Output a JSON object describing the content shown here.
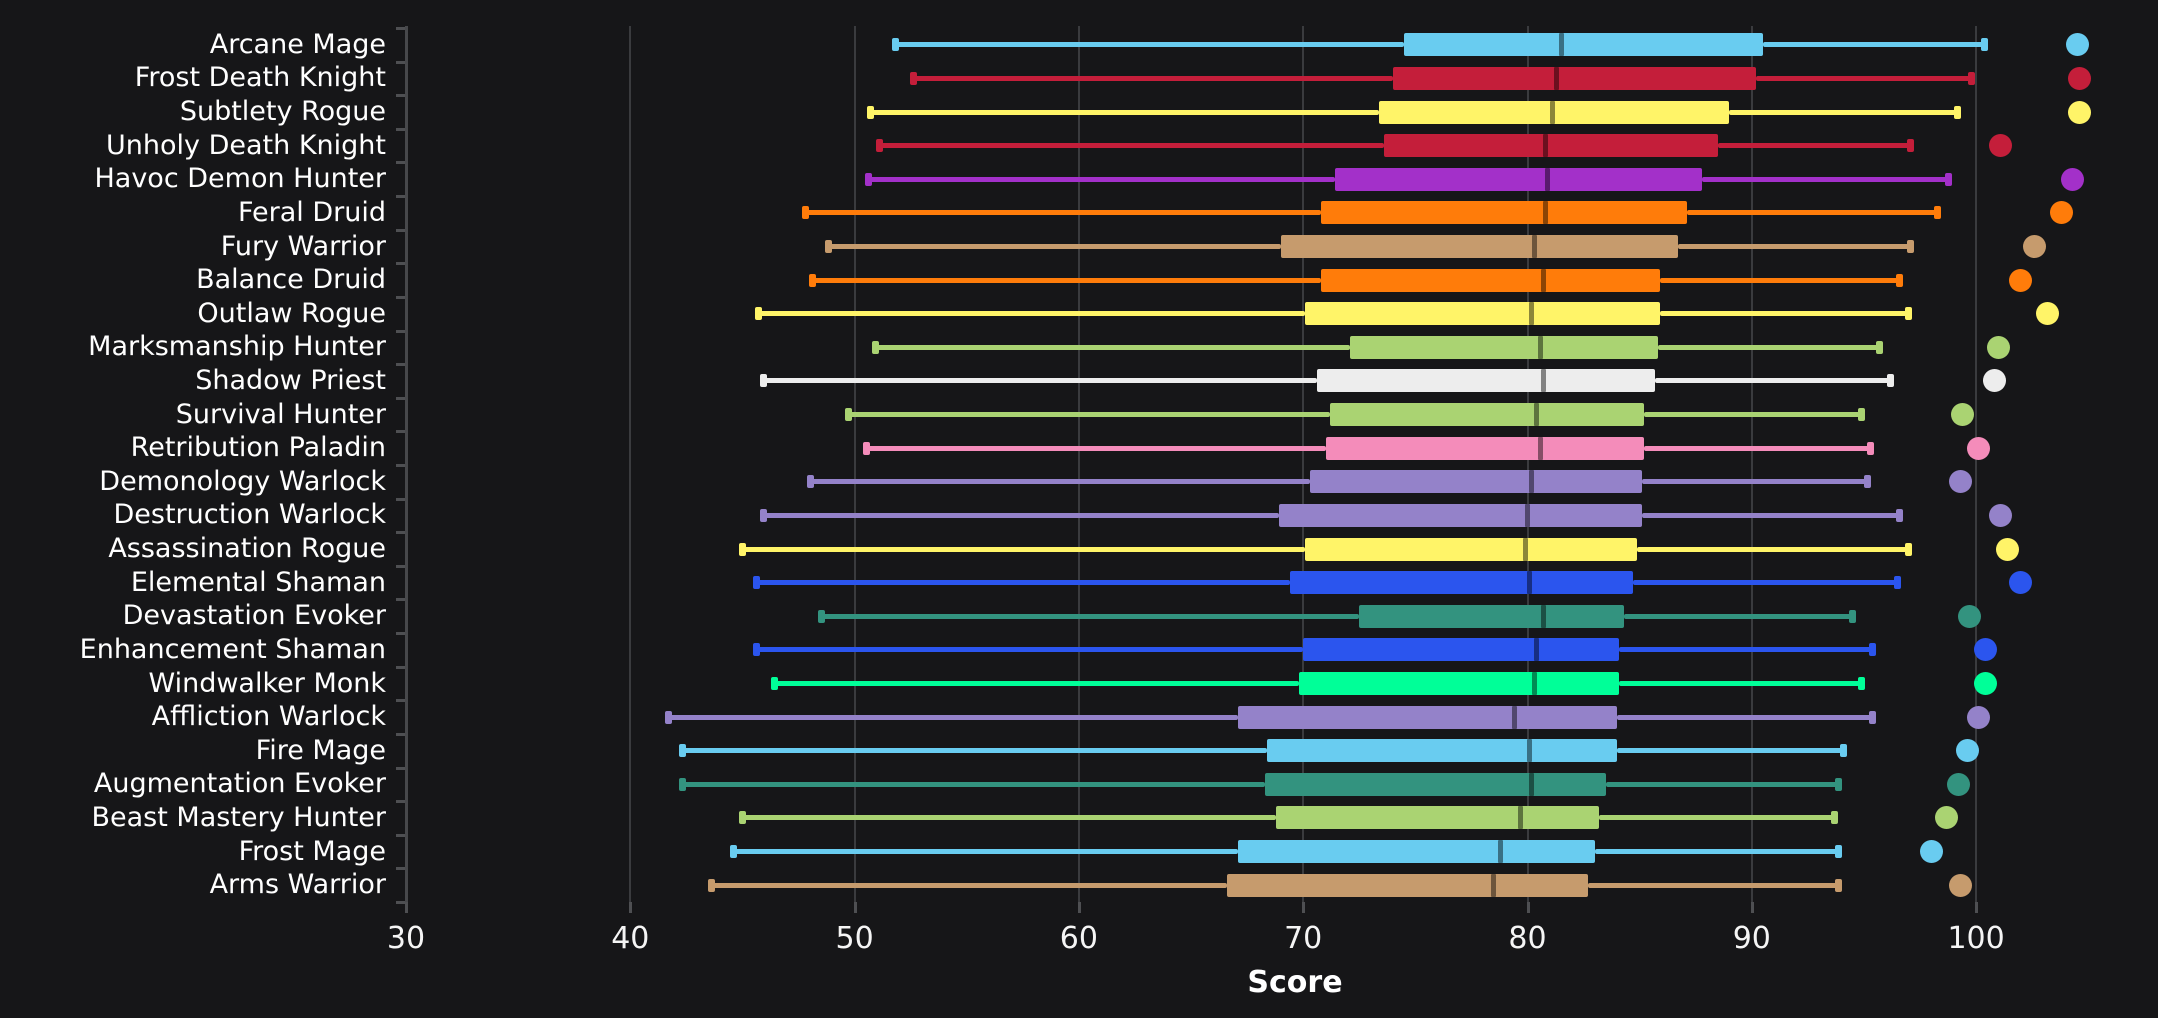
{
  "page": {
    "background": "#161618"
  },
  "chart_data": {
    "type": "boxplot",
    "orientation": "horizontal",
    "title": "",
    "xlabel": "Score",
    "xlim": [
      27.5,
      108
    ],
    "xticks": [
      30,
      40,
      50,
      60,
      70,
      80,
      90,
      100
    ],
    "grid": "vertical",
    "legend_position": "none",
    "class_colors": {
      "mage": "#69CCF0",
      "death-knight": "#C41E3A",
      "rogue": "#FFF468",
      "demon-hunter": "#A330C9",
      "druid": "#FF7C0A",
      "warrior": "#C69B6D",
      "hunter": "#AAD372",
      "priest": "#EDEDED",
      "paladin": "#F48CBA",
      "warlock": "#9482C9",
      "shaman": "#2B55EE",
      "evoker": "#33937F",
      "monk": "#00FF98"
    },
    "rows": [
      {
        "label": "Arcane Mage",
        "class": "mage",
        "whisker_low": 51.8,
        "q1": 74.5,
        "median": 81.5,
        "q3": 90.5,
        "whisker_high": 100.4,
        "top_point": 104.5
      },
      {
        "label": "Frost Death Knight",
        "class": "death-knight",
        "whisker_low": 52.6,
        "q1": 74.0,
        "median": 81.3,
        "q3": 90.2,
        "whisker_high": 99.8,
        "top_point": 104.6
      },
      {
        "label": "Subtlety Rogue",
        "class": "rogue",
        "whisker_low": 50.7,
        "q1": 73.4,
        "median": 81.1,
        "q3": 89.0,
        "whisker_high": 99.2,
        "top_point": 104.6
      },
      {
        "label": "Unholy Death Knight",
        "class": "death-knight",
        "whisker_low": 51.1,
        "q1": 73.6,
        "median": 80.8,
        "q3": 88.5,
        "whisker_high": 97.1,
        "top_point": 101.1
      },
      {
        "label": "Havoc Demon Hunter",
        "class": "demon-hunter",
        "whisker_low": 50.6,
        "q1": 71.4,
        "median": 80.9,
        "q3": 87.8,
        "whisker_high": 98.8,
        "top_point": 104.3
      },
      {
        "label": "Feral Druid",
        "class": "druid",
        "whisker_low": 47.8,
        "q1": 70.8,
        "median": 80.8,
        "q3": 87.1,
        "whisker_high": 98.3,
        "top_point": 103.8
      },
      {
        "label": "Fury Warrior",
        "class": "warrior",
        "whisker_low": 48.8,
        "q1": 69.0,
        "median": 80.3,
        "q3": 86.7,
        "whisker_high": 97.1,
        "top_point": 102.6
      },
      {
        "label": "Balance Druid",
        "class": "druid",
        "whisker_low": 48.1,
        "q1": 70.8,
        "median": 80.7,
        "q3": 85.9,
        "whisker_high": 96.6,
        "top_point": 102.0
      },
      {
        "label": "Outlaw Rogue",
        "class": "rogue",
        "whisker_low": 45.7,
        "q1": 70.1,
        "median": 80.2,
        "q3": 85.9,
        "whisker_high": 97.0,
        "top_point": 103.2
      },
      {
        "label": "Marksmanship Hunter",
        "class": "hunter",
        "whisker_low": 50.9,
        "q1": 72.1,
        "median": 80.6,
        "q3": 85.8,
        "whisker_high": 95.7,
        "top_point": 101.0
      },
      {
        "label": "Shadow Priest",
        "class": "priest",
        "whisker_low": 45.9,
        "q1": 70.6,
        "median": 80.7,
        "q3": 85.7,
        "whisker_high": 96.2,
        "top_point": 100.8
      },
      {
        "label": "Survival Hunter",
        "class": "hunter",
        "whisker_low": 49.7,
        "q1": 71.2,
        "median": 80.4,
        "q3": 85.2,
        "whisker_high": 94.9,
        "top_point": 99.4
      },
      {
        "label": "Retribution Paladin",
        "class": "paladin",
        "whisker_low": 50.5,
        "q1": 71.0,
        "median": 80.6,
        "q3": 85.2,
        "whisker_high": 95.3,
        "top_point": 100.1
      },
      {
        "label": "Demonology Warlock",
        "class": "warlock",
        "whisker_low": 48.0,
        "q1": 70.3,
        "median": 80.2,
        "q3": 85.1,
        "whisker_high": 95.2,
        "top_point": 99.3
      },
      {
        "label": "Destruction Warlock",
        "class": "warlock",
        "whisker_low": 45.9,
        "q1": 68.9,
        "median": 80.0,
        "q3": 85.1,
        "whisker_high": 96.6,
        "top_point": 101.1
      },
      {
        "label": "Assassination Rogue",
        "class": "rogue",
        "whisker_low": 45.0,
        "q1": 70.1,
        "median": 79.9,
        "q3": 84.9,
        "whisker_high": 97.0,
        "top_point": 101.4
      },
      {
        "label": "Elemental Shaman",
        "class": "shaman",
        "whisker_low": 45.6,
        "q1": 69.4,
        "median": 80.1,
        "q3": 84.7,
        "whisker_high": 96.5,
        "top_point": 102.0
      },
      {
        "label": "Devastation Evoker",
        "class": "evoker",
        "whisker_low": 48.5,
        "q1": 72.5,
        "median": 80.7,
        "q3": 84.3,
        "whisker_high": 94.5,
        "top_point": 99.7
      },
      {
        "label": "Enhancement Shaman",
        "class": "shaman",
        "whisker_low": 45.6,
        "q1": 70.0,
        "median": 80.4,
        "q3": 84.1,
        "whisker_high": 95.4,
        "top_point": 100.4
      },
      {
        "label": "Windwalker Monk",
        "class": "monk",
        "whisker_low": 46.4,
        "q1": 69.8,
        "median": 80.3,
        "q3": 84.1,
        "whisker_high": 94.9,
        "top_point": 100.4
      },
      {
        "label": "Affliction Warlock",
        "class": "warlock",
        "whisker_low": 41.7,
        "q1": 67.1,
        "median": 79.4,
        "q3": 84.0,
        "whisker_high": 95.4,
        "top_point": 100.1
      },
      {
        "label": "Fire Mage",
        "class": "mage",
        "whisker_low": 42.3,
        "q1": 68.4,
        "median": 80.1,
        "q3": 84.0,
        "whisker_high": 94.1,
        "top_point": 99.6
      },
      {
        "label": "Augmentation Evoker",
        "class": "evoker",
        "whisker_low": 42.3,
        "q1": 68.3,
        "median": 80.2,
        "q3": 83.5,
        "whisker_high": 93.9,
        "top_point": 99.2
      },
      {
        "label": "Beast Mastery Hunter",
        "class": "hunter",
        "whisker_low": 45.0,
        "q1": 68.8,
        "median": 79.7,
        "q3": 83.2,
        "whisker_high": 93.7,
        "top_point": 98.7
      },
      {
        "label": "Frost Mage",
        "class": "mage",
        "whisker_low": 44.6,
        "q1": 67.1,
        "median": 78.8,
        "q3": 83.0,
        "whisker_high": 93.9,
        "top_point": 98.0
      },
      {
        "label": "Arms Warrior",
        "class": "warrior",
        "whisker_low": 43.6,
        "q1": 66.6,
        "median": 78.5,
        "q3": 82.7,
        "whisker_high": 93.9,
        "top_point": 99.3
      }
    ]
  }
}
